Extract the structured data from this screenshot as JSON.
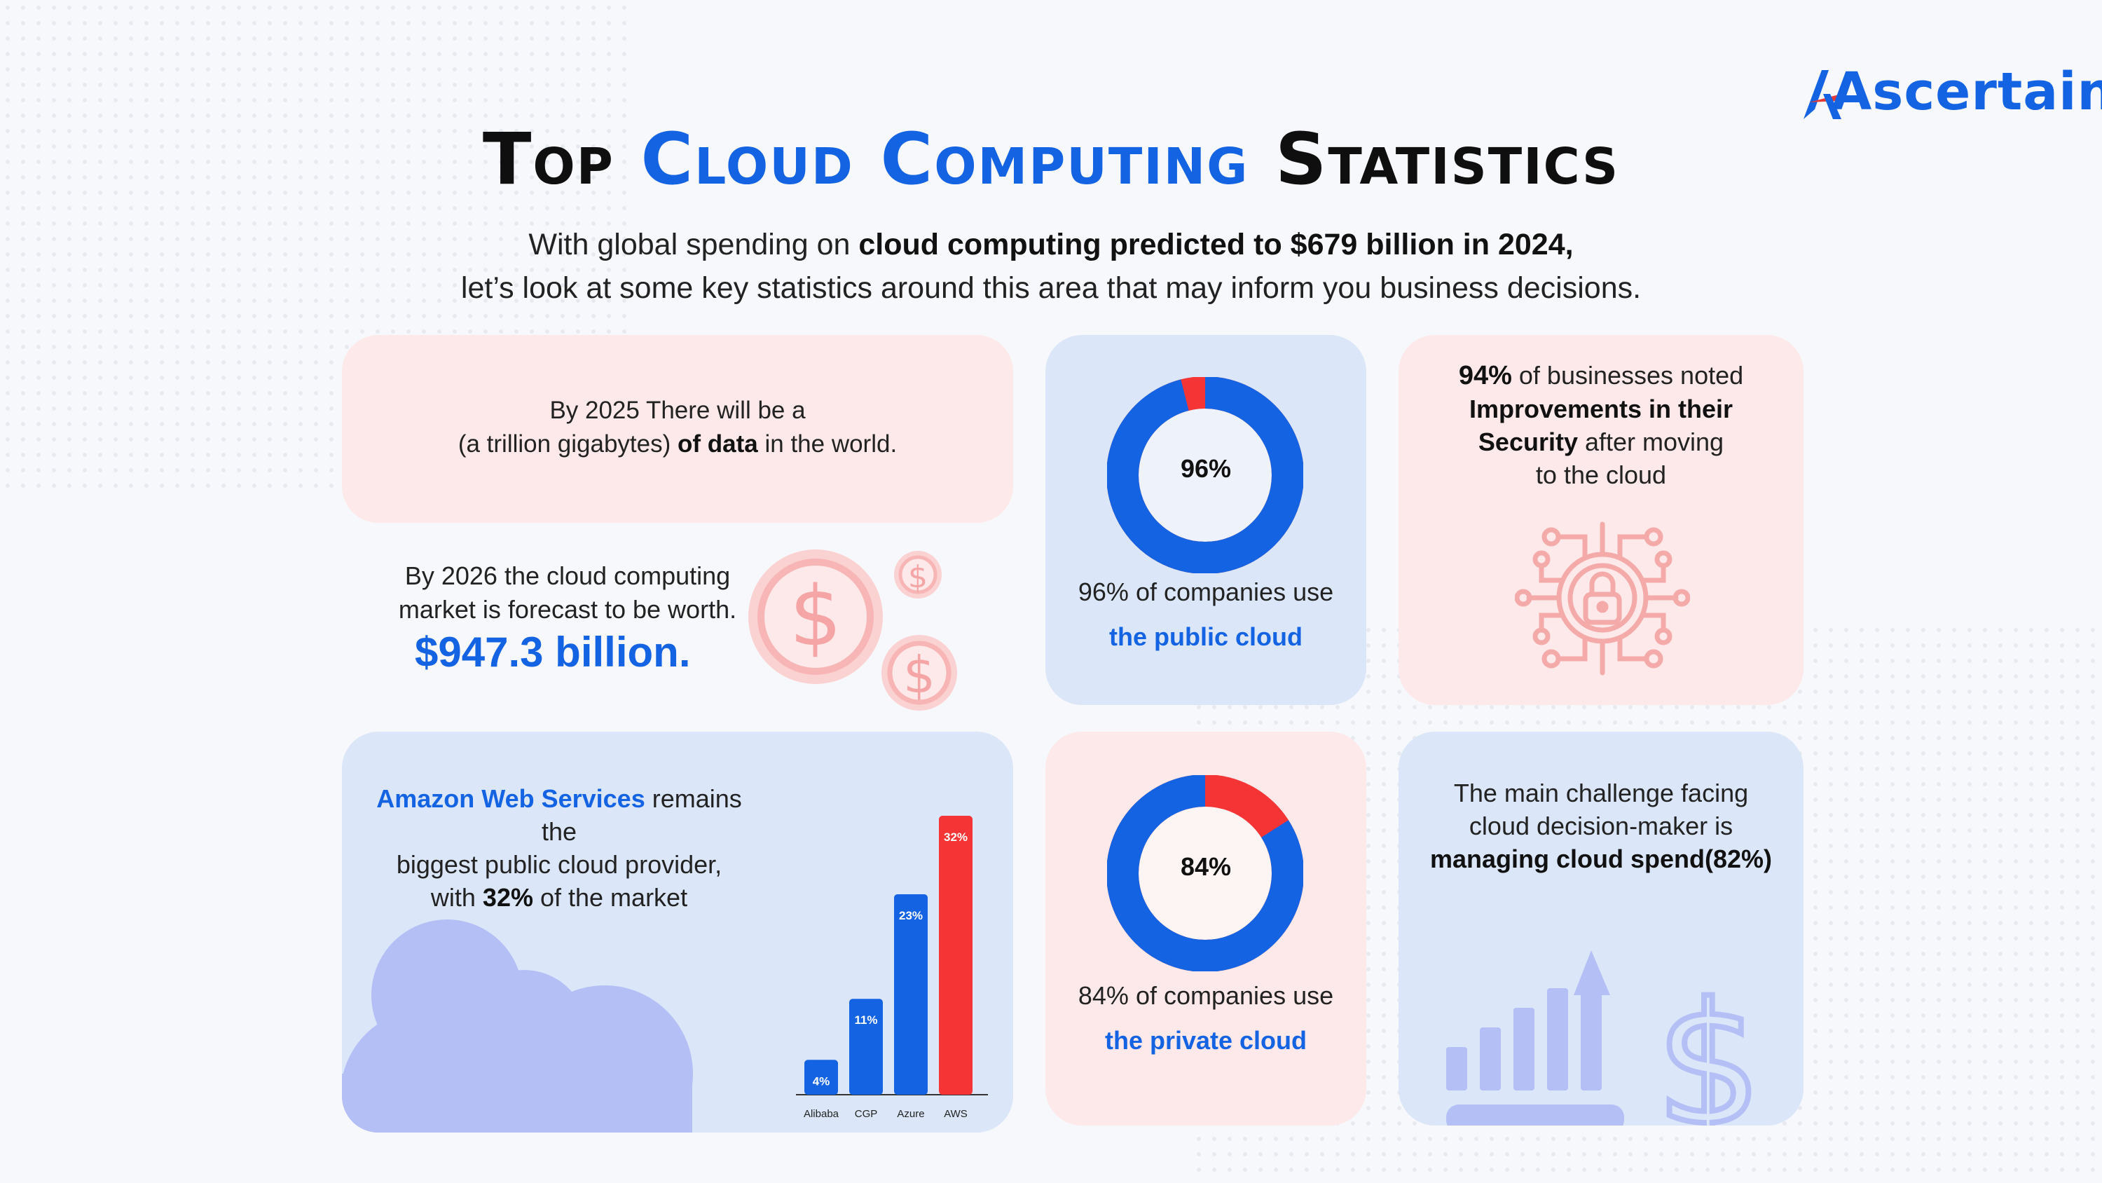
{
  "brand": {
    "name": "Ascertain"
  },
  "header": {
    "title_part1": "Top ",
    "title_accent": "Cloud Computing",
    "title_part2": " Statistics",
    "subtitle_line1_pre": "With global spending on ",
    "subtitle_line1_bold": "cloud computing predicted to $679 billion in 2024,",
    "subtitle_line2": "let’s look at some key statistics around this area that may inform you business decisions."
  },
  "stat_data": {
    "line1": "By 2025 There will be a",
    "line2_pre": "(a trillion gigabytes) ",
    "line2_bold": "of data",
    "line2_post": " in the world."
  },
  "stat_market": {
    "line1": "By 2026 the cloud computing",
    "line2": "market is forecast to be worth.",
    "value": "$947.3 billion."
  },
  "stat_public_cloud": {
    "percent": 96,
    "label": "96%",
    "caption": "96% of companies use",
    "caption_bold": "the public cloud"
  },
  "stat_security": {
    "pct": "94%",
    "line1_post": "  of businesses noted",
    "line2_bold": "Improvements in their",
    "line3_bold": "Security",
    "line3_post": " after moving",
    "line4": "to the cloud"
  },
  "stat_aws": {
    "line1_hl": "Amazon Web Services",
    "line1_post": " remains the",
    "line2": "biggest public cloud provider,",
    "line3_pre": "with ",
    "line3_bold": "32%",
    "line3_post": " of the market"
  },
  "chart_data": {
    "type": "bar",
    "categories": [
      "Alibaba",
      "CGP",
      "Azure",
      "AWS"
    ],
    "values": [
      4,
      11,
      23,
      32
    ],
    "value_labels": [
      "4%",
      "11%",
      "23%",
      "32%"
    ],
    "ylim": [
      0,
      32
    ],
    "grid": false,
    "colors": [
      "#1463e2",
      "#1463e2",
      "#1463e2",
      "#f53535"
    ]
  },
  "stat_private_cloud": {
    "percent": 84,
    "label": "84%",
    "caption": "84% of companies use",
    "caption_bold": "the private cloud"
  },
  "stat_challenge": {
    "line1": "The main challenge facing",
    "line2": "cloud decision-maker is",
    "line3_bold": "managing cloud spend(82%)"
  },
  "colors": {
    "accent": "#1463e2",
    "highlight": "#f53535",
    "pink_card": "#fde9e9",
    "blue_card": "#dbe7f8",
    "pink_icon": "#f7b5b5",
    "lavender_icon": "#b5c0f7"
  },
  "icons": [
    "dollar-coin-icon",
    "circuit-lock-icon",
    "cloud-icon",
    "growth-chart-icon",
    "dollar-sign-icon"
  ]
}
